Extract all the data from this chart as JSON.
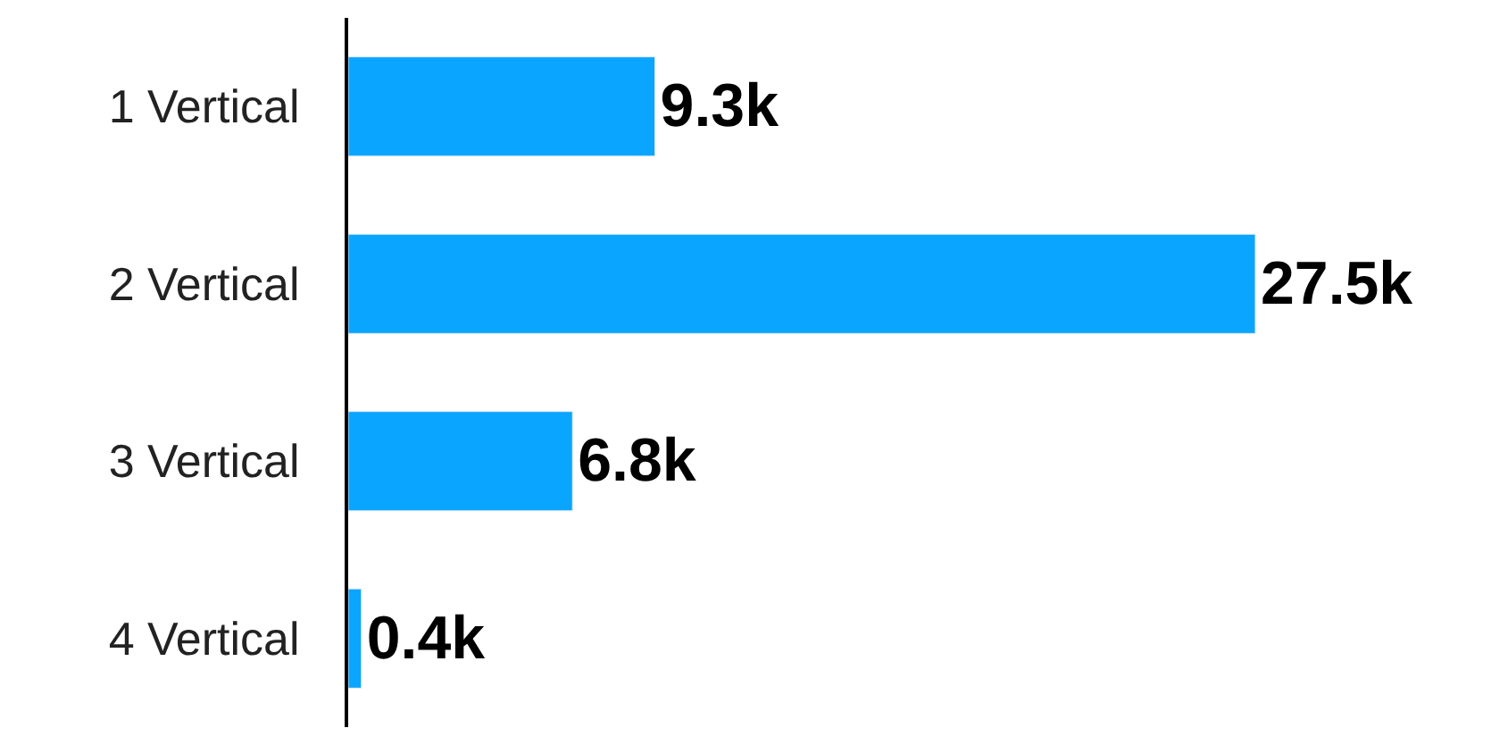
{
  "chart_data": {
    "type": "bar",
    "orientation": "horizontal",
    "categories": [
      "1 Vertical",
      "2 Vertical",
      "3 Vertical",
      "4 Vertical"
    ],
    "values": [
      9.3,
      27.5,
      6.8,
      0.4
    ],
    "value_labels": [
      "9.3k",
      "27.5k",
      "6.8k",
      "0.4k"
    ],
    "color": "#0aa5ff"
  }
}
